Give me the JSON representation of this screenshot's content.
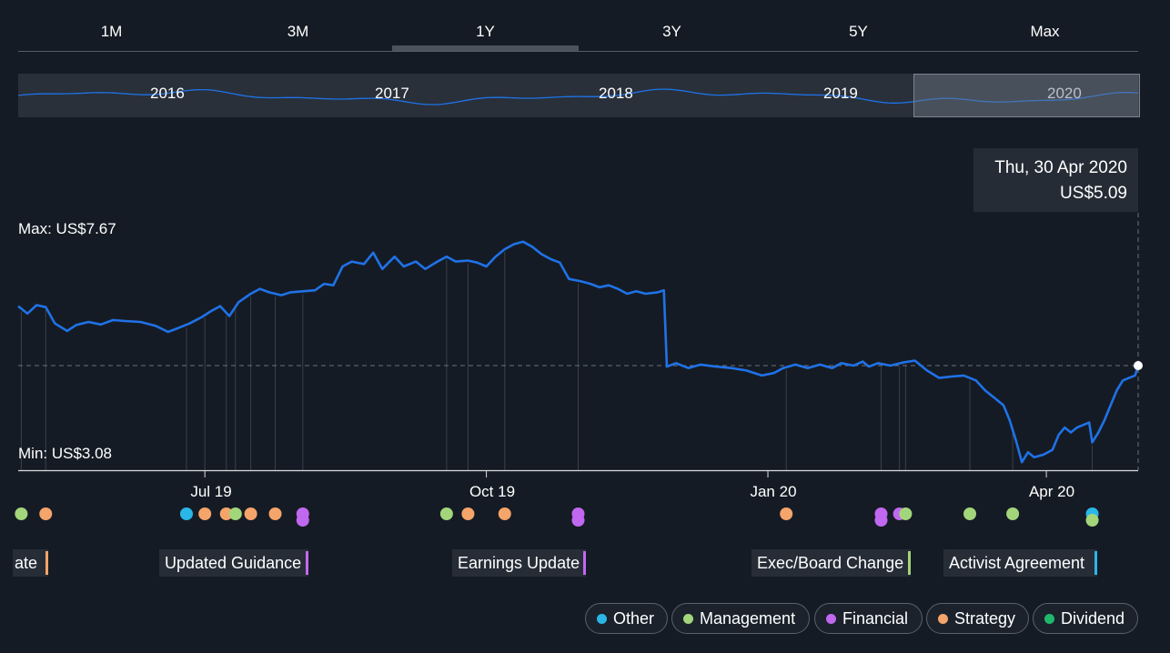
{
  "range_tabs": [
    {
      "label": "1M"
    },
    {
      "label": "3M"
    },
    {
      "label": "1Y",
      "active": true
    },
    {
      "label": "3Y"
    },
    {
      "label": "5Y"
    },
    {
      "label": "Max"
    }
  ],
  "navigator": {
    "years": [
      "2016",
      "2017",
      "2018",
      "2019",
      "2020"
    ]
  },
  "tooltip": {
    "date": "Thu, 30 Apr 2020",
    "price": "US$5.09"
  },
  "colors": {
    "background": "#151b24",
    "line": "#1f72e8",
    "Other": "#2ab7e8",
    "Management": "#a3d57b",
    "Financial": "#c168f0",
    "Strategy": "#f5a46a",
    "Dividend": "#1fb86a"
  },
  "chart_data": {
    "type": "line",
    "max_label": "Max: US$7.67",
    "min_label": "Min: US$3.08",
    "ylim": [
      3.08,
      7.67
    ],
    "x_domain": [
      "2019-05-01",
      "2020-05-01"
    ],
    "x_ticks": [
      {
        "label": "Jul 19",
        "date": "2019-07-01"
      },
      {
        "label": "Oct 19",
        "date": "2019-10-01"
      },
      {
        "label": "Jan 20",
        "date": "2020-01-01"
      },
      {
        "label": "Apr 20",
        "date": "2020-04-01"
      }
    ],
    "series": [
      {
        "points": [
          [
            "2019-05-01",
            6.3
          ],
          [
            "2019-05-04",
            6.15
          ],
          [
            "2019-05-07",
            6.32
          ],
          [
            "2019-05-10",
            6.28
          ],
          [
            "2019-05-13",
            5.95
          ],
          [
            "2019-05-17",
            5.8
          ],
          [
            "2019-05-20",
            5.92
          ],
          [
            "2019-05-24",
            5.98
          ],
          [
            "2019-05-28",
            5.93
          ],
          [
            "2019-06-01",
            6.02
          ],
          [
            "2019-06-05",
            6.0
          ],
          [
            "2019-06-10",
            5.98
          ],
          [
            "2019-06-15",
            5.9
          ],
          [
            "2019-06-19",
            5.78
          ],
          [
            "2019-06-22",
            5.85
          ],
          [
            "2019-06-26",
            5.95
          ],
          [
            "2019-06-30",
            6.08
          ],
          [
            "2019-07-03",
            6.2
          ],
          [
            "2019-07-06",
            6.3
          ],
          [
            "2019-07-09",
            6.1
          ],
          [
            "2019-07-12",
            6.38
          ],
          [
            "2019-07-16",
            6.55
          ],
          [
            "2019-07-19",
            6.65
          ],
          [
            "2019-07-22",
            6.58
          ],
          [
            "2019-07-26",
            6.52
          ],
          [
            "2019-07-29",
            6.58
          ],
          [
            "2019-08-02",
            6.6
          ],
          [
            "2019-08-06",
            6.62
          ],
          [
            "2019-08-09",
            6.75
          ],
          [
            "2019-08-12",
            6.72
          ],
          [
            "2019-08-15",
            7.1
          ],
          [
            "2019-08-18",
            7.2
          ],
          [
            "2019-08-22",
            7.15
          ],
          [
            "2019-08-25",
            7.38
          ],
          [
            "2019-08-28",
            7.05
          ],
          [
            "2019-09-01",
            7.3
          ],
          [
            "2019-09-04",
            7.1
          ],
          [
            "2019-09-08",
            7.2
          ],
          [
            "2019-09-11",
            7.05
          ],
          [
            "2019-09-15",
            7.2
          ],
          [
            "2019-09-18",
            7.3
          ],
          [
            "2019-09-21",
            7.2
          ],
          [
            "2019-09-25",
            7.22
          ],
          [
            "2019-09-28",
            7.18
          ],
          [
            "2019-10-01",
            7.1
          ],
          [
            "2019-10-04",
            7.3
          ],
          [
            "2019-10-07",
            7.45
          ],
          [
            "2019-10-10",
            7.55
          ],
          [
            "2019-10-13",
            7.6
          ],
          [
            "2019-10-16",
            7.5
          ],
          [
            "2019-10-19",
            7.35
          ],
          [
            "2019-10-22",
            7.25
          ],
          [
            "2019-10-25",
            7.18
          ],
          [
            "2019-10-28",
            6.85
          ],
          [
            "2019-11-01",
            6.8
          ],
          [
            "2019-11-04",
            6.75
          ],
          [
            "2019-11-07",
            6.68
          ],
          [
            "2019-11-10",
            6.72
          ],
          [
            "2019-11-13",
            6.65
          ],
          [
            "2019-11-16",
            6.55
          ],
          [
            "2019-11-19",
            6.6
          ],
          [
            "2019-11-22",
            6.55
          ],
          [
            "2019-11-26",
            6.58
          ],
          [
            "2019-11-28",
            6.62
          ],
          [
            "2019-11-29",
            5.08
          ],
          [
            "2019-12-02",
            5.15
          ],
          [
            "2019-12-06",
            5.05
          ],
          [
            "2019-12-10",
            5.12
          ],
          [
            "2019-12-15",
            5.08
          ],
          [
            "2019-12-20",
            5.05
          ],
          [
            "2019-12-25",
            5.0
          ],
          [
            "2019-12-30",
            4.9
          ],
          [
            "2020-01-03",
            4.95
          ],
          [
            "2020-01-06",
            5.05
          ],
          [
            "2020-01-10",
            5.12
          ],
          [
            "2020-01-14",
            5.05
          ],
          [
            "2020-01-18",
            5.12
          ],
          [
            "2020-01-22",
            5.05
          ],
          [
            "2020-01-25",
            5.15
          ],
          [
            "2020-01-29",
            5.1
          ],
          [
            "2020-02-01",
            5.18
          ],
          [
            "2020-02-03",
            5.08
          ],
          [
            "2020-02-06",
            5.15
          ],
          [
            "2020-02-10",
            5.1
          ],
          [
            "2020-02-14",
            5.16
          ],
          [
            "2020-02-18",
            5.2
          ],
          [
            "2020-02-22",
            5.0
          ],
          [
            "2020-02-26",
            4.85
          ],
          [
            "2020-03-01",
            4.88
          ],
          [
            "2020-03-05",
            4.9
          ],
          [
            "2020-03-09",
            4.8
          ],
          [
            "2020-03-12",
            4.6
          ],
          [
            "2020-03-15",
            4.45
          ],
          [
            "2020-03-18",
            4.3
          ],
          [
            "2020-03-20",
            4.0
          ],
          [
            "2020-03-22",
            3.6
          ],
          [
            "2020-03-24",
            3.15
          ],
          [
            "2020-03-26",
            3.35
          ],
          [
            "2020-03-28",
            3.25
          ],
          [
            "2020-03-31",
            3.3
          ],
          [
            "2020-04-03",
            3.4
          ],
          [
            "2020-04-05",
            3.7
          ],
          [
            "2020-04-07",
            3.85
          ],
          [
            "2020-04-09",
            3.75
          ],
          [
            "2020-04-11",
            3.85
          ],
          [
            "2020-04-13",
            3.9
          ],
          [
            "2020-04-15",
            3.95
          ],
          [
            "2020-04-16",
            3.55
          ],
          [
            "2020-04-18",
            3.75
          ],
          [
            "2020-04-20",
            4.0
          ],
          [
            "2020-04-22",
            4.3
          ],
          [
            "2020-04-24",
            4.6
          ],
          [
            "2020-04-26",
            4.8
          ],
          [
            "2020-04-28",
            4.85
          ],
          [
            "2020-04-30",
            4.9
          ],
          [
            "2020-05-01",
            5.09
          ]
        ]
      }
    ],
    "events": [
      {
        "date": "2019-05-02",
        "types": [
          "Management"
        ]
      },
      {
        "date": "2019-05-10",
        "types": [
          "Strategy"
        ]
      },
      {
        "date": "2019-06-25",
        "types": [
          "Other"
        ]
      },
      {
        "date": "2019-07-01",
        "types": [
          "Strategy"
        ]
      },
      {
        "date": "2019-07-08",
        "types": [
          "Strategy"
        ]
      },
      {
        "date": "2019-07-11",
        "types": [
          "Management"
        ]
      },
      {
        "date": "2019-07-16",
        "types": [
          "Strategy"
        ]
      },
      {
        "date": "2019-07-24",
        "types": [
          "Strategy"
        ]
      },
      {
        "date": "2019-08-02",
        "types": [
          "Financial",
          "Financial"
        ]
      },
      {
        "date": "2019-09-18",
        "types": [
          "Management"
        ]
      },
      {
        "date": "2019-09-25",
        "types": [
          "Strategy"
        ]
      },
      {
        "date": "2019-10-07",
        "types": [
          "Strategy"
        ]
      },
      {
        "date": "2019-10-31",
        "types": [
          "Financial",
          "Financial"
        ]
      },
      {
        "date": "2020-01-07",
        "types": [
          "Strategy"
        ]
      },
      {
        "date": "2020-02-07",
        "types": [
          "Financial",
          "Financial"
        ]
      },
      {
        "date": "2020-02-13",
        "types": [
          "Financial"
        ]
      },
      {
        "date": "2020-02-15",
        "types": [
          "Management"
        ]
      },
      {
        "date": "2020-03-07",
        "types": [
          "Management"
        ]
      },
      {
        "date": "2020-03-21",
        "types": [
          "Management"
        ]
      },
      {
        "date": "2020-04-16",
        "types": [
          "Other",
          "Management"
        ]
      }
    ],
    "event_tags": [
      {
        "text": "ate",
        "type": "Strategy"
      },
      {
        "text": "Updated Guidance",
        "type": "Financial"
      },
      {
        "text": "Earnings Update",
        "type": "Financial"
      },
      {
        "text": "Exec/Board Change",
        "type": "Management"
      },
      {
        "text": "Activist Agreement",
        "type": "Other"
      }
    ]
  },
  "legend": [
    {
      "label": "Other",
      "type": "Other"
    },
    {
      "label": "Management",
      "type": "Management"
    },
    {
      "label": "Financial",
      "type": "Financial"
    },
    {
      "label": "Strategy",
      "type": "Strategy"
    },
    {
      "label": "Dividend",
      "type": "Dividend"
    }
  ]
}
